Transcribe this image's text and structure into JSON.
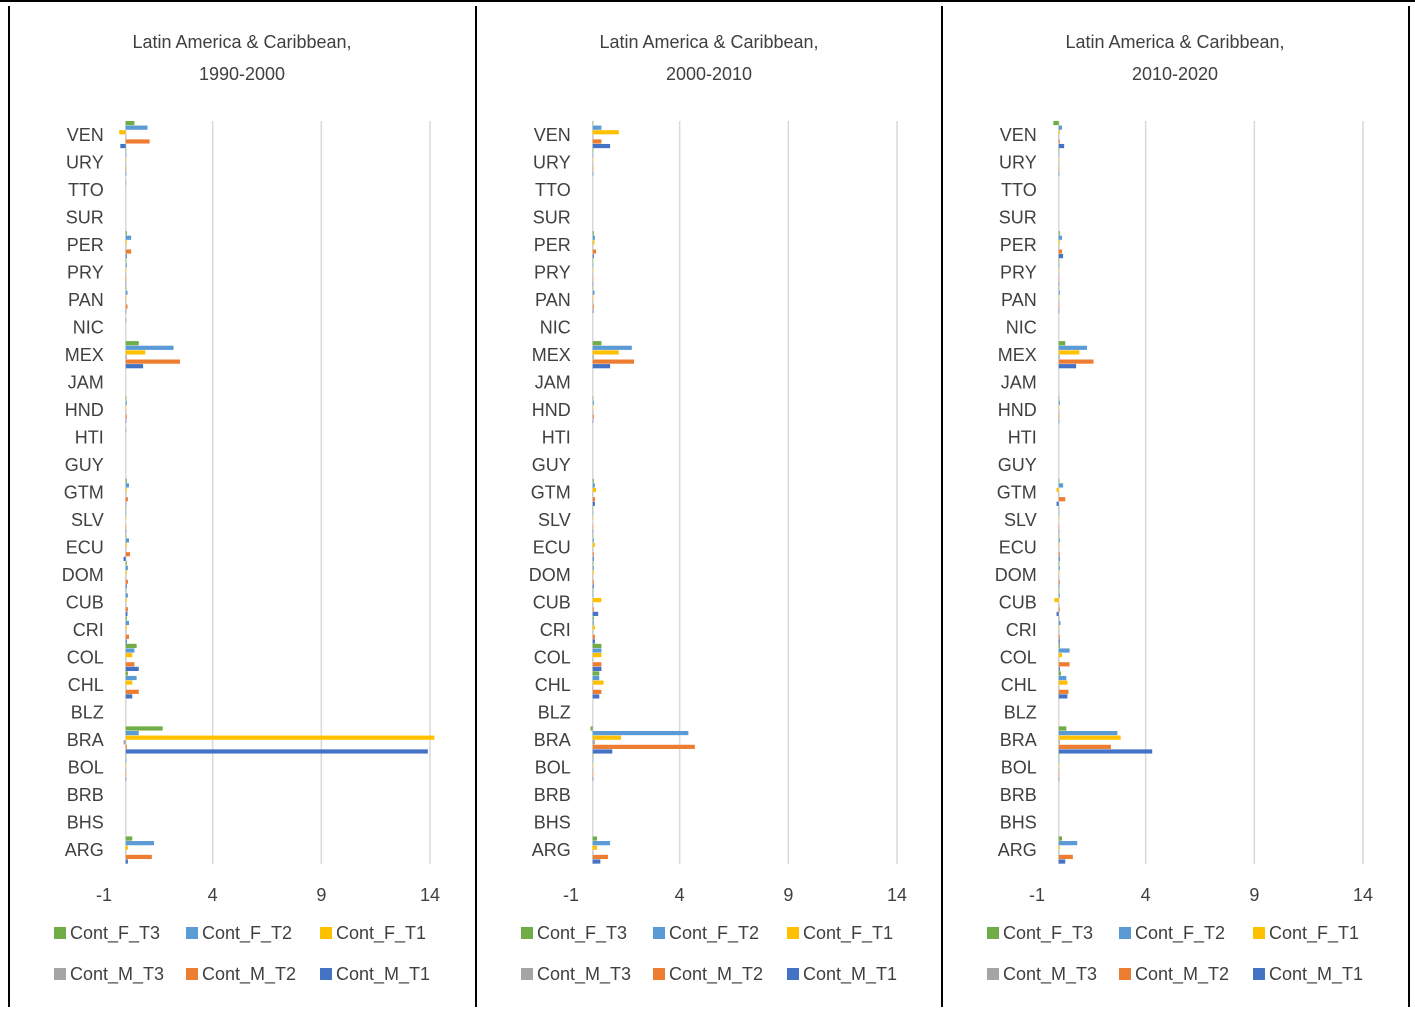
{
  "colors": {
    "Cont_F_T3": "#70ad47",
    "Cont_F_T2": "#5b9bd5",
    "Cont_F_T1": "#ffc000",
    "Cont_M_T3": "#a5a5a5",
    "Cont_M_T2": "#ed7d31",
    "Cont_M_T1": "#4472c4",
    "grid": "#d9d9d9",
    "text": "#404040"
  },
  "chart_data": [
    {
      "type": "bar",
      "orientation": "horizontal",
      "title": "Latin America & Caribbean,",
      "subtitle": "1990-2000",
      "categories": [
        "ARG",
        "BHS",
        "BRB",
        "BOL",
        "BRA",
        "BLZ",
        "CHL",
        "COL",
        "CRI",
        "CUB",
        "DOM",
        "ECU",
        "SLV",
        "GTM",
        "GUY",
        "HTI",
        "HND",
        "JAM",
        "MEX",
        "NIC",
        "PAN",
        "PRY",
        "PER",
        "SUR",
        "TTO",
        "URY",
        "VEN"
      ],
      "xlim": [
        -1,
        14
      ],
      "xticks": [
        "-1",
        "4",
        "9",
        "14"
      ],
      "grid": true,
      "legend": "bottom",
      "series": [
        {
          "name": "Cont_F_T3",
          "values": [
            0.3,
            0,
            0,
            0.02,
            1.7,
            0,
            0.1,
            0.5,
            0.05,
            0.03,
            0.05,
            0.03,
            0.01,
            0.05,
            0,
            0,
            0.03,
            0,
            0.6,
            0,
            0.03,
            0.03,
            0.05,
            0,
            0,
            0.02,
            0.4
          ]
        },
        {
          "name": "Cont_F_T2",
          "values": [
            1.3,
            0,
            0,
            0.03,
            0.6,
            0,
            0.5,
            0.4,
            0.15,
            0.1,
            0.1,
            0.15,
            0.02,
            0.15,
            0,
            0.01,
            0.05,
            0,
            2.2,
            0.01,
            0.08,
            0.05,
            0.25,
            0,
            0.01,
            0.03,
            1.0
          ]
        },
        {
          "name": "Cont_F_T1",
          "values": [
            0.1,
            0,
            0,
            0.01,
            14.2,
            0,
            0.3,
            0.3,
            0.05,
            0.05,
            0.05,
            0.05,
            0.01,
            0.05,
            0,
            0,
            0.02,
            0,
            0.9,
            0,
            0.03,
            0.03,
            0.05,
            0,
            0,
            0.01,
            -0.3
          ]
        },
        {
          "name": "Cont_M_T3",
          "values": [
            0.02,
            0,
            0,
            0.01,
            -0.1,
            0,
            0.02,
            0.02,
            0.01,
            0.01,
            0.01,
            0.01,
            0,
            0.01,
            0,
            0,
            0.01,
            0,
            0.05,
            0,
            0.01,
            0.01,
            0.02,
            0,
            0,
            0.01,
            0.02
          ]
        },
        {
          "name": "Cont_M_T2",
          "values": [
            1.2,
            0,
            0,
            0.02,
            0.05,
            0,
            0.6,
            0.4,
            0.15,
            0.1,
            0.1,
            0.2,
            0.02,
            0.1,
            0,
            0,
            0.05,
            0,
            2.5,
            0,
            0.08,
            0.03,
            0.25,
            0,
            0,
            0.02,
            1.1
          ]
        },
        {
          "name": "Cont_M_T1",
          "values": [
            0.1,
            0,
            0,
            0.01,
            13.9,
            0,
            0.3,
            0.6,
            0.05,
            0.08,
            0.05,
            -0.1,
            0.01,
            0.02,
            0,
            0,
            0.02,
            0,
            0.8,
            0,
            0.02,
            0.02,
            0.05,
            0,
            0,
            0.01,
            -0.25
          ]
        }
      ]
    },
    {
      "type": "bar",
      "orientation": "horizontal",
      "title": "Latin America & Caribbean,",
      "subtitle": "2000-2010",
      "categories": [
        "ARG",
        "BHS",
        "BRB",
        "BOL",
        "BRA",
        "BLZ",
        "CHL",
        "COL",
        "CRI",
        "CUB",
        "DOM",
        "ECU",
        "SLV",
        "GTM",
        "GUY",
        "HTI",
        "HND",
        "JAM",
        "MEX",
        "NIC",
        "PAN",
        "PRY",
        "PER",
        "SUR",
        "TTO",
        "URY",
        "VEN"
      ],
      "xlim": [
        -1,
        14
      ],
      "xticks": [
        "-1",
        "4",
        "9",
        "14"
      ],
      "grid": true,
      "legend": "bottom",
      "series": [
        {
          "name": "Cont_F_T3",
          "values": [
            0.2,
            0,
            0,
            0.01,
            -0.1,
            0,
            0.3,
            0.4,
            0.05,
            0.03,
            0.03,
            0.02,
            0.01,
            0.05,
            0,
            0,
            0.02,
            0,
            0.4,
            0,
            0.02,
            0.02,
            0.05,
            0,
            0,
            0.01,
            0.02
          ]
        },
        {
          "name": "Cont_F_T2",
          "values": [
            0.8,
            0,
            0,
            0.02,
            4.4,
            0,
            0.3,
            0.4,
            0.05,
            0.03,
            0.05,
            0.05,
            0.01,
            0.1,
            0,
            0,
            0.05,
            0,
            1.8,
            0,
            0.08,
            0.03,
            0.1,
            0,
            0,
            0.02,
            0.4
          ]
        },
        {
          "name": "Cont_F_T1",
          "values": [
            0.2,
            0,
            0,
            0.01,
            1.3,
            0,
            0.5,
            0.4,
            0.1,
            0.4,
            0.05,
            0.1,
            0.01,
            0.15,
            0,
            0,
            0.02,
            0,
            1.2,
            0,
            0.03,
            0.02,
            0.08,
            0,
            0,
            0.01,
            1.2
          ]
        },
        {
          "name": "Cont_M_T3",
          "values": [
            0.02,
            0,
            0,
            0.01,
            0.1,
            0,
            0.02,
            0.02,
            0.01,
            0.01,
            0.01,
            0.01,
            0,
            0.01,
            0,
            0,
            0.01,
            0,
            0.05,
            0,
            0.01,
            0.01,
            0.02,
            0,
            0,
            0.01,
            0.02
          ]
        },
        {
          "name": "Cont_M_T2",
          "values": [
            0.7,
            0,
            0,
            0.02,
            4.7,
            0,
            0.4,
            0.4,
            0.1,
            0.05,
            0.05,
            0.05,
            0.01,
            0.1,
            0,
            0,
            0.05,
            0,
            1.9,
            0,
            0.05,
            0.02,
            0.15,
            0,
            0,
            0.02,
            0.4
          ]
        },
        {
          "name": "Cont_M_T1",
          "values": [
            0.35,
            0,
            0,
            0.01,
            0.9,
            0,
            0.3,
            0.4,
            0.1,
            0.25,
            0.05,
            0.05,
            0.01,
            0.1,
            0,
            0,
            0.02,
            0,
            0.8,
            0,
            0.03,
            0.02,
            0.05,
            0,
            0,
            0.01,
            0.8
          ]
        }
      ]
    },
    {
      "type": "bar",
      "orientation": "horizontal",
      "title": "Latin America & Caribbean,",
      "subtitle": "2010-2020",
      "categories": [
        "ARG",
        "BHS",
        "BRB",
        "BOL",
        "BRA",
        "BLZ",
        "CHL",
        "COL",
        "CRI",
        "CUB",
        "DOM",
        "ECU",
        "SLV",
        "GTM",
        "GUY",
        "HTI",
        "HND",
        "JAM",
        "MEX",
        "NIC",
        "PAN",
        "PRY",
        "PER",
        "SUR",
        "TTO",
        "URY",
        "VEN"
      ],
      "xlim": [
        -1,
        14
      ],
      "xticks": [
        "-1",
        "4",
        "9",
        "14"
      ],
      "grid": true,
      "legend": "bottom",
      "series": [
        {
          "name": "Cont_F_T3",
          "values": [
            0.15,
            0,
            0,
            0.01,
            0.35,
            0,
            0.1,
            0.05,
            0.03,
            0.03,
            0.03,
            0.02,
            0.01,
            0.03,
            0,
            0,
            0.02,
            0,
            0.3,
            0,
            0.02,
            0.02,
            0.05,
            0,
            0,
            0.01,
            -0.25
          ]
        },
        {
          "name": "Cont_F_T2",
          "values": [
            0.85,
            0,
            0,
            0.02,
            2.7,
            0,
            0.35,
            0.5,
            0.08,
            0.05,
            0.05,
            0.05,
            0.01,
            0.2,
            0,
            0,
            0.05,
            0,
            1.3,
            0,
            0.05,
            0.03,
            0.15,
            0,
            0,
            0.02,
            0.15
          ]
        },
        {
          "name": "Cont_F_T1",
          "values": [
            0.05,
            0,
            0,
            0.01,
            2.85,
            0,
            0.4,
            0.15,
            0.03,
            -0.2,
            0.03,
            0.03,
            0.01,
            -0.1,
            0,
            0,
            0.02,
            0,
            0.95,
            0,
            0.02,
            0.02,
            0.05,
            0,
            0,
            0.01,
            0.05
          ]
        },
        {
          "name": "Cont_M_T3",
          "values": [
            0.02,
            0,
            0,
            0.01,
            0.05,
            0,
            0.02,
            0.02,
            0.01,
            0.01,
            0.01,
            0.01,
            0,
            0.01,
            0,
            0,
            0.01,
            0,
            0.05,
            0,
            0.01,
            0.01,
            0.02,
            0,
            0,
            0.01,
            0.02
          ]
        },
        {
          "name": "Cont_M_T2",
          "values": [
            0.65,
            0,
            0,
            0.02,
            2.4,
            0,
            0.45,
            0.5,
            0.05,
            0.05,
            0.05,
            0.05,
            0.01,
            0.3,
            0,
            0,
            0.03,
            0,
            1.6,
            0,
            0.03,
            0.02,
            0.15,
            0,
            0,
            0.02,
            0.05
          ]
        },
        {
          "name": "Cont_M_T1",
          "values": [
            0.3,
            0,
            0,
            0.01,
            4.3,
            0,
            0.4,
            0.05,
            0.05,
            -0.1,
            0.03,
            0.05,
            0.01,
            -0.1,
            0,
            0,
            0.02,
            0,
            0.8,
            0,
            0.02,
            0.02,
            0.2,
            0,
            0,
            0.01,
            0.25
          ]
        }
      ]
    }
  ]
}
